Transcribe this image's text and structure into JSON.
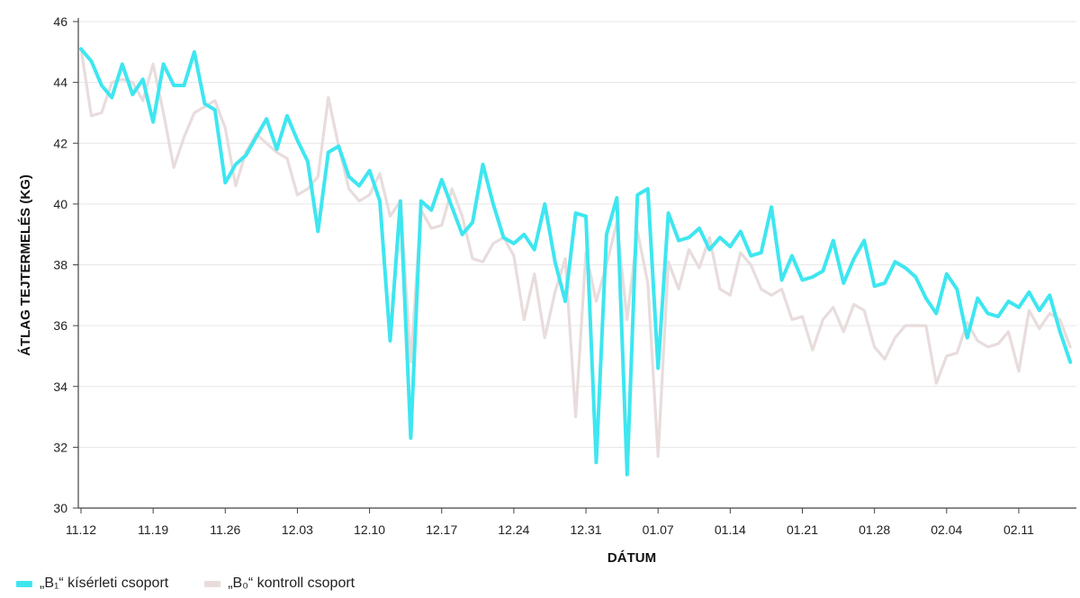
{
  "chart_data": {
    "type": "line",
    "xlabel": "DÁTUM",
    "ylabel": "ÁTLAG TEJTERMELÉS (KG)",
    "ylim": [
      30,
      46
    ],
    "yticks": [
      30,
      32,
      34,
      36,
      38,
      40,
      42,
      44,
      46
    ],
    "xlim": [
      0,
      98
    ],
    "xticks": [
      {
        "x": 0,
        "label": "11.12"
      },
      {
        "x": 7,
        "label": "11.19"
      },
      {
        "x": 14,
        "label": "11.26"
      },
      {
        "x": 21,
        "label": "12.03"
      },
      {
        "x": 28,
        "label": "12.10"
      },
      {
        "x": 35,
        "label": "12.17"
      },
      {
        "x": 42,
        "label": "12.24"
      },
      {
        "x": 49,
        "label": "12.31"
      },
      {
        "x": 56,
        "label": "01.07"
      },
      {
        "x": 63,
        "label": "01.14"
      },
      {
        "x": 70,
        "label": "01.21"
      },
      {
        "x": 77,
        "label": "01.28"
      },
      {
        "x": 84,
        "label": "02.04"
      },
      {
        "x": 91,
        "label": "02.11"
      }
    ],
    "grid": "horizontal",
    "legend_position": "bottom-left",
    "series": [
      {
        "name": "„B₁“ kísérleti csoport",
        "color": "#3ee6f0",
        "values": [
          45.1,
          44.7,
          43.9,
          43.5,
          44.6,
          43.6,
          44.1,
          42.7,
          44.6,
          43.9,
          43.9,
          45.0,
          43.3,
          43.1,
          40.7,
          41.3,
          41.6,
          42.2,
          42.8,
          41.8,
          42.9,
          42.1,
          41.4,
          39.1,
          41.7,
          41.9,
          40.9,
          40.6,
          41.1,
          40.1,
          35.5,
          40.1,
          32.3,
          40.1,
          39.8,
          40.8,
          39.9,
          39.0,
          39.4,
          41.3,
          40.0,
          38.9,
          38.7,
          39.0,
          38.5,
          40.0,
          38.1,
          36.8,
          39.7,
          39.6,
          31.5,
          39.0,
          40.2,
          31.1,
          40.3,
          40.5,
          34.6,
          39.7,
          38.8,
          38.9,
          39.2,
          38.5,
          38.9,
          38.6,
          39.1,
          38.3,
          38.4,
          39.9,
          37.5,
          38.3,
          37.5,
          37.6,
          37.8,
          38.8,
          37.4,
          38.2,
          38.8,
          37.3,
          37.4,
          38.1,
          37.9,
          37.6,
          36.9,
          36.4,
          37.7,
          37.2,
          35.6,
          36.9,
          36.4,
          36.3,
          36.8,
          36.6,
          37.1,
          36.5,
          37.0,
          35.8,
          34.8
        ]
      },
      {
        "name": "„B₀“ kontroll csoport",
        "color": "#e8dcdc",
        "values": [
          45.1,
          42.9,
          43.0,
          44.0,
          44.1,
          44.0,
          43.4,
          44.6,
          43.0,
          41.2,
          42.2,
          43.0,
          43.2,
          43.4,
          42.5,
          40.6,
          41.7,
          42.3,
          42.0,
          41.7,
          41.5,
          40.3,
          40.5,
          40.9,
          43.5,
          41.9,
          40.5,
          40.1,
          40.3,
          41.0,
          39.6,
          40.1,
          34.8,
          39.8,
          39.2,
          39.3,
          40.5,
          39.6,
          38.2,
          38.1,
          38.7,
          38.9,
          38.3,
          36.2,
          37.7,
          35.6,
          37.1,
          38.2,
          33.0,
          38.4,
          36.8,
          38.0,
          39.4,
          36.2,
          39.1,
          37.4,
          31.7,
          38.1,
          37.2,
          38.5,
          37.9,
          38.9,
          37.2,
          37.0,
          38.4,
          38.0,
          37.2,
          37.0,
          37.2,
          36.2,
          36.3,
          35.2,
          36.2,
          36.6,
          35.8,
          36.7,
          36.5,
          35.3,
          34.9,
          35.6,
          36.0,
          36.0,
          36.0,
          34.1,
          35.0,
          35.1,
          36.1,
          35.5,
          35.3,
          35.4,
          35.8,
          34.5,
          36.5,
          35.9,
          36.4,
          36.2,
          35.3
        ]
      }
    ]
  }
}
